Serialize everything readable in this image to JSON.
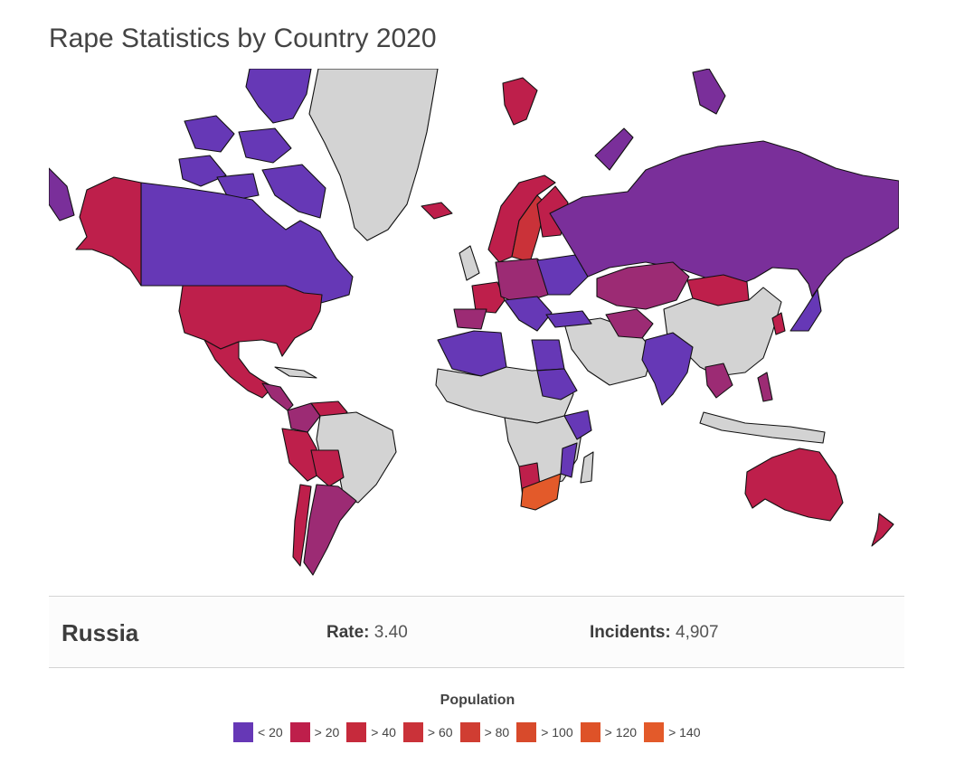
{
  "title": "Rape Statistics by Country 2020",
  "colors": {
    "no_data": "#d3d3d3",
    "lt20": "#6638b6",
    "gt20": "#be1f4b",
    "gt40": "#c62a3c",
    "gt60": "#ca3239",
    "gt80": "#d03d32",
    "gt100": "#d84a2b",
    "gt120": "#de5228",
    "gt140": "#e35a2a",
    "purple_mid": "#7a2f9a",
    "magenta": "#9c2b74"
  },
  "selected": {
    "country": "Russia",
    "rate_label": "Rate:",
    "rate_value": "3.40",
    "incidents_label": "Incidents:",
    "incidents_value": "4,907"
  },
  "legend": {
    "title": "Population",
    "items": [
      {
        "label": "< 20",
        "color": "#6638b6"
      },
      {
        "label": "> 20",
        "color": "#be1f4b"
      },
      {
        "label": "> 40",
        "color": "#c62a3c"
      },
      {
        "label": "> 60",
        "color": "#ca3239"
      },
      {
        "label": "> 80",
        "color": "#d03d32"
      },
      {
        "label": "> 100",
        "color": "#d84a2b"
      },
      {
        "label": "> 120",
        "color": "#de5228"
      },
      {
        "label": "> 140",
        "color": "#e35a2a"
      }
    ]
  }
}
